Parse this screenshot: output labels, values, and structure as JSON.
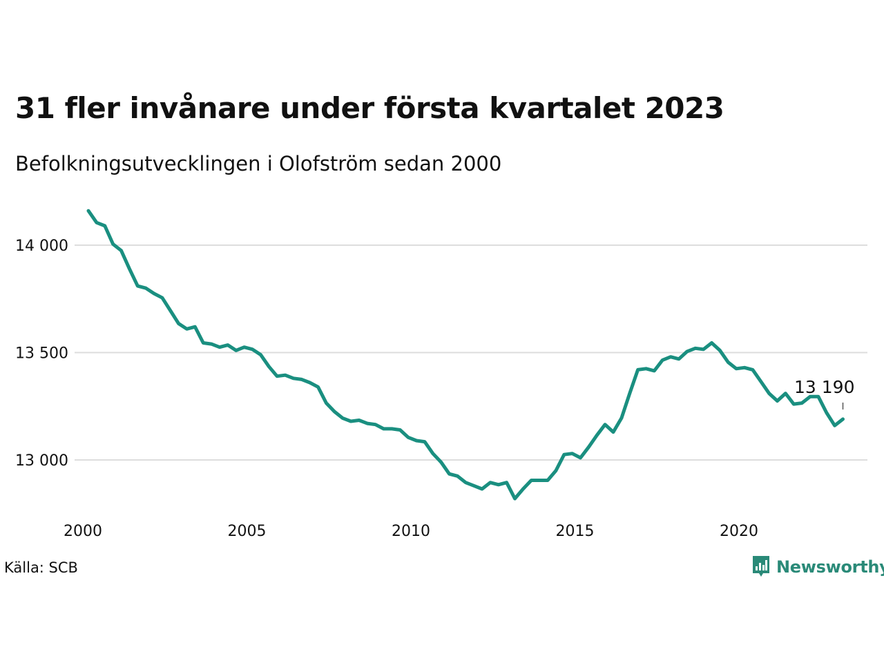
{
  "title": "31 fler invånare under första kvartalet 2023",
  "subtitle": "Befolkningsutvecklingen i Olofström sedan 2000",
  "source": "Källa: SCB",
  "brand": "Newsworthy",
  "colors": {
    "line": "#1a8f80",
    "grid": "#dddddd",
    "brand": "#2a8a78"
  },
  "chart_data": {
    "type": "line",
    "title": "31 fler invånare under första kvartalet 2023",
    "subtitle": "Befolkningsutvecklingen i Olofström sedan 2000",
    "xlabel": "",
    "ylabel": "",
    "xlim": [
      2000,
      2024.2
    ],
    "ylim": [
      12790,
      14190
    ],
    "x_ticks": [
      2000,
      2005,
      2010,
      2015,
      2020
    ],
    "y_ticks": [
      13000,
      13500,
      14000
    ],
    "y_tick_labels": [
      "13 000",
      "13 500",
      "14 000"
    ],
    "grid": "horizontal",
    "annotation": {
      "text": "13 190",
      "x": 2023.0,
      "y": 13190
    },
    "series": [
      {
        "x": [
          2000.0,
          2000.25,
          2000.5,
          2000.75,
          2001.0,
          2001.25,
          2001.5,
          2001.75,
          2002.0,
          2002.25,
          2002.5,
          2002.75,
          2003.0,
          2003.25,
          2003.5,
          2003.75,
          2004.0,
          2004.25,
          2004.5,
          2004.75,
          2005.0,
          2005.25,
          2005.5,
          2005.75,
          2006.0,
          2006.25,
          2006.5,
          2006.75,
          2007.0,
          2007.25,
          2007.5,
          2007.75,
          2008.0,
          2008.25,
          2008.5,
          2008.75,
          2009.0,
          2009.25,
          2009.5,
          2009.75,
          2010.0,
          2010.25,
          2010.5,
          2010.75,
          2011.0,
          2011.25,
          2011.5,
          2011.75,
          2012.0,
          2012.25,
          2012.5,
          2012.75,
          2013.0,
          2013.25,
          2013.5,
          2013.75,
          2014.0,
          2014.25,
          2014.5,
          2014.75,
          2015.0,
          2015.25,
          2015.5,
          2015.75,
          2016.0,
          2016.25,
          2016.5,
          2016.75,
          2017.0,
          2017.25,
          2017.5,
          2017.75,
          2018.0,
          2018.25,
          2018.5,
          2018.75,
          2019.0,
          2019.25,
          2019.5,
          2019.75,
          2020.0,
          2020.25,
          2020.5,
          2020.75,
          2021.0,
          2021.25,
          2021.5,
          2021.75,
          2022.0,
          2022.25,
          2022.5,
          2022.75,
          2023.0
        ],
        "values": [
          14160,
          14105,
          14090,
          14005,
          13975,
          13890,
          13810,
          13800,
          13775,
          13755,
          13695,
          13635,
          13610,
          13620,
          13545,
          13540,
          13525,
          13535,
          13510,
          13525,
          13515,
          13490,
          13435,
          13390,
          13395,
          13380,
          13375,
          13360,
          13340,
          13265,
          13225,
          13195,
          13180,
          13185,
          13170,
          13165,
          13145,
          13145,
          13140,
          13105,
          13090,
          13085,
          13030,
          12990,
          12935,
          12925,
          12895,
          12880,
          12865,
          12895,
          12885,
          12895,
          12820,
          12865,
          12905,
          12905,
          12905,
          12950,
          13025,
          13030,
          13010,
          13060,
          13115,
          13165,
          13130,
          13195,
          13310,
          13420,
          13425,
          13415,
          13465,
          13480,
          13470,
          13505,
          13520,
          13515,
          13545,
          13510,
          13455,
          13425,
          13430,
          13420,
          13365,
          13310,
          13275,
          13310,
          13260,
          13265,
          13295,
          13295,
          13220,
          13160,
          13190
        ]
      }
    ]
  }
}
